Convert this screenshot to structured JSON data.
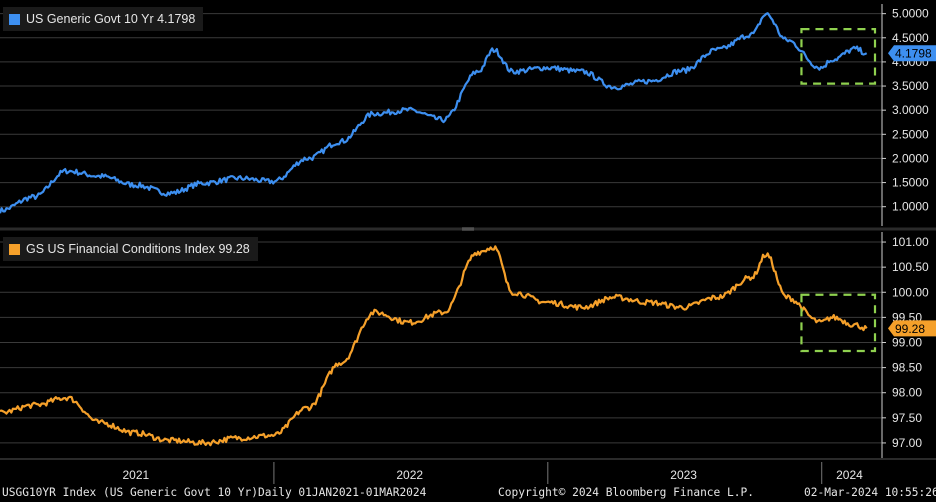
{
  "legend": {
    "top": "US Generic Govt 10 Yr 4.1798",
    "bottom": "GS US Financial Conditions Index 99.28"
  },
  "footer": {
    "left": "USGG10YR Index (US Generic Govt 10 Yr)",
    "middle": "Daily 01JAN2021-01MAR2024",
    "copyright": "Copyright© 2024 Bloomberg Finance L.P.",
    "timestamp": "02-Mar-2024 10:55:26"
  },
  "colors": {
    "yield_line": "#3d8ff0",
    "fci_line": "#f5a02a",
    "highlight_box": "#8fd14f",
    "grid": "#3a3a3a",
    "background": "#000000"
  },
  "chart_data": [
    {
      "type": "line",
      "title": "US Generic Govt 10 Yr 4.1798",
      "last_value_label": "4.1798",
      "x": [
        "2021-01-01",
        "2021-02-15",
        "2021-03-31",
        "2021-05-15",
        "2021-06-30",
        "2021-08-15",
        "2021-09-30",
        "2021-11-15",
        "2021-12-31",
        "2022-02-15",
        "2022-03-31",
        "2022-05-15",
        "2022-06-30",
        "2022-08-15",
        "2022-09-30",
        "2022-10-21",
        "2022-11-15",
        "2022-12-31",
        "2023-02-15",
        "2023-03-31",
        "2023-05-15",
        "2023-06-30",
        "2023-08-15",
        "2023-09-30",
        "2023-10-19",
        "2023-11-15",
        "2023-12-31",
        "2024-01-15",
        "2024-02-15",
        "2024-03-01"
      ],
      "values": [
        0.92,
        1.2,
        1.74,
        1.63,
        1.45,
        1.28,
        1.49,
        1.59,
        1.52,
        2.0,
        2.35,
        2.93,
        3.0,
        2.8,
        3.8,
        4.25,
        3.8,
        3.88,
        3.8,
        3.48,
        3.6,
        3.82,
        4.25,
        4.57,
        4.99,
        4.45,
        3.88,
        4.05,
        4.27,
        4.18
      ],
      "ylim": [
        0.6,
        5.2
      ],
      "y_ticks": [
        "5.0000",
        "4.5000",
        "4.0000",
        "3.5000",
        "3.0000",
        "2.5000",
        "2.0000",
        "1.5000",
        "1.0000"
      ],
      "highlight": "2023-12 to 2024-03"
    },
    {
      "type": "line",
      "title": "GS US Financial Conditions Index 99.28",
      "last_value_label": "99.28",
      "x": [
        "2021-01-01",
        "2021-02-15",
        "2021-03-31",
        "2021-05-15",
        "2021-06-30",
        "2021-08-15",
        "2021-09-30",
        "2021-11-15",
        "2021-12-31",
        "2022-02-15",
        "2022-03-31",
        "2022-05-15",
        "2022-06-30",
        "2022-08-15",
        "2022-09-30",
        "2022-10-21",
        "2022-11-15",
        "2022-12-31",
        "2023-02-15",
        "2023-03-31",
        "2023-05-15",
        "2023-06-30",
        "2023-08-15",
        "2023-09-30",
        "2023-10-19",
        "2023-11-15",
        "2023-12-31",
        "2024-01-15",
        "2024-02-15",
        "2024-03-01"
      ],
      "values": [
        97.6,
        97.75,
        97.9,
        97.4,
        97.2,
        97.05,
        97.0,
        97.1,
        97.15,
        97.7,
        98.6,
        99.6,
        99.4,
        99.6,
        100.8,
        100.9,
        100.0,
        99.8,
        99.7,
        99.9,
        99.8,
        99.7,
        99.9,
        100.3,
        100.75,
        99.9,
        99.4,
        99.5,
        99.35,
        99.28
      ],
      "ylim": [
        96.7,
        101.2
      ],
      "y_ticks": [
        "101.00",
        "100.50",
        "100.00",
        "99.50",
        "99.00",
        "98.50",
        "98.00",
        "97.50",
        "97.00"
      ],
      "highlight": "2023-12 to 2024-03"
    }
  ],
  "x_axis": {
    "labels": [
      "2021",
      "2022",
      "2023",
      "2024"
    ]
  }
}
